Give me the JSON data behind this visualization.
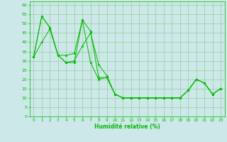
{
  "xlabel": "Humidité relative (%)",
  "background_color": "#cce8e8",
  "line_color": "#00bb00",
  "grid_color": "#99cc99",
  "xlim": [
    -0.5,
    23.5
  ],
  "ylim": [
    0,
    62
  ],
  "xticks": [
    0,
    1,
    2,
    3,
    4,
    5,
    6,
    7,
    8,
    9,
    10,
    11,
    12,
    13,
    14,
    15,
    16,
    17,
    18,
    19,
    20,
    21,
    22,
    23
  ],
  "yticks": [
    0,
    5,
    10,
    15,
    20,
    25,
    30,
    35,
    40,
    45,
    50,
    55,
    60
  ],
  "series": [
    [
      32,
      54,
      48,
      33,
      29,
      29,
      52,
      46,
      21,
      21,
      12,
      10,
      10,
      10,
      10,
      10,
      10,
      10,
      10,
      14,
      20,
      18,
      12,
      15
    ],
    [
      32,
      54,
      48,
      33,
      33,
      34,
      52,
      29,
      20,
      21,
      12,
      10,
      10,
      10,
      10,
      10,
      10,
      10,
      10,
      14,
      20,
      18,
      12,
      15
    ],
    [
      32,
      40,
      47,
      33,
      29,
      30,
      38,
      45,
      28,
      22,
      12,
      10,
      10,
      10,
      10,
      10,
      10,
      10,
      10,
      14,
      20,
      18,
      12,
      15
    ]
  ]
}
